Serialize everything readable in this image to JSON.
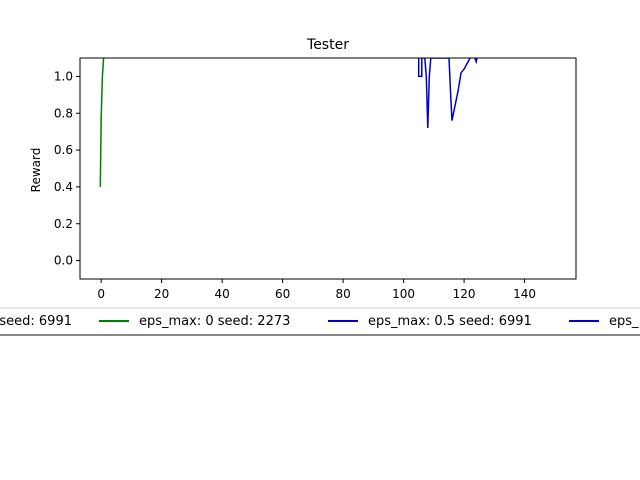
{
  "chart_data": {
    "type": "line",
    "title": "Tester",
    "xlabel": "",
    "ylabel": "Reward",
    "xlim": [
      -7,
      157
    ],
    "ylim": [
      -0.1,
      1.1
    ],
    "xticks": [
      0,
      20,
      40,
      60,
      80,
      100,
      120,
      140
    ],
    "yticks": [
      0.0,
      0.2,
      0.4,
      0.6,
      0.8,
      1.0
    ],
    "xtick_labels": [
      "0",
      "20",
      "40",
      "60",
      "80",
      "100",
      "120",
      "140"
    ],
    "ytick_labels": [
      "0.0",
      "0.2",
      "0.4",
      "0.6",
      "0.8",
      "1.0"
    ],
    "grid": false,
    "legend_position": "below the plot, clipped on both sides",
    "series": [
      {
        "name": "eps_max: 0 seed: 2273",
        "color": "#008000",
        "x": [
          -0.3,
          0.0,
          0.4,
          0.8
        ],
        "y": [
          0.4,
          0.78,
          1.0,
          1.1
        ]
      },
      {
        "name": "eps_max: 0.5 seed: 6991",
        "color": "#0000cc",
        "x": [
          105,
          105,
          106,
          106,
          107,
          107.5,
          108,
          108.5,
          109,
          115,
          115.5,
          116,
          117,
          118,
          119,
          120,
          122,
          123,
          124,
          124.5
        ],
        "y": [
          1.1,
          1.0,
          1.0,
          1.1,
          1.1,
          1.0,
          0.72,
          1.0,
          1.1,
          1.1,
          0.92,
          0.76,
          0.84,
          0.92,
          1.02,
          1.04,
          1.1,
          1.12,
          1.08,
          1.12
        ]
      }
    ],
    "legend_entries": [
      {
        "label": "seed: 6991",
        "color": "",
        "clipped": true
      },
      {
        "label": "eps_max: 0 seed: 2273",
        "color": "#008000",
        "clipped": false
      },
      {
        "label": "eps_max: 0.5 seed: 6991",
        "color": "#0000cc",
        "clipped": false
      },
      {
        "label": "eps_",
        "color": "#0000cc",
        "clipped": true
      }
    ]
  }
}
